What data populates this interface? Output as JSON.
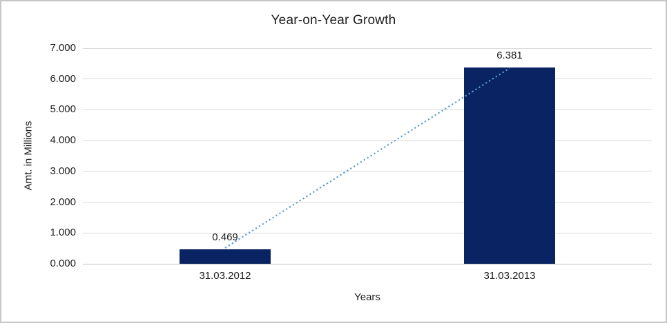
{
  "chart_data": {
    "type": "bar",
    "title": "Year-on-Year Growth",
    "xlabel": "Years",
    "ylabel": "Amt. in Millions",
    "categories": [
      "31.03.2012",
      "31.03.2013"
    ],
    "values": [
      0.469,
      6.381
    ],
    "data_labels": [
      "0.469",
      "6.381"
    ],
    "ylim": [
      0,
      7
    ],
    "ytick_labels": [
      "0.000",
      "1.000",
      "2.000",
      "3.000",
      "4.000",
      "5.000",
      "6.000",
      "7.000"
    ],
    "grid": true,
    "legend": "none",
    "trendline": {
      "type": "linear",
      "style": "dotted",
      "from_value": 0.469,
      "to_value": 6.381
    },
    "colors": {
      "bar": "#0a2463",
      "trendline": "#5b9bd5",
      "gridline": "#d9d9d9",
      "axis_line": "#bfbfbf",
      "text": "#1d1d1d",
      "frame": "#c6c6c6",
      "background": "#ffffff"
    }
  }
}
